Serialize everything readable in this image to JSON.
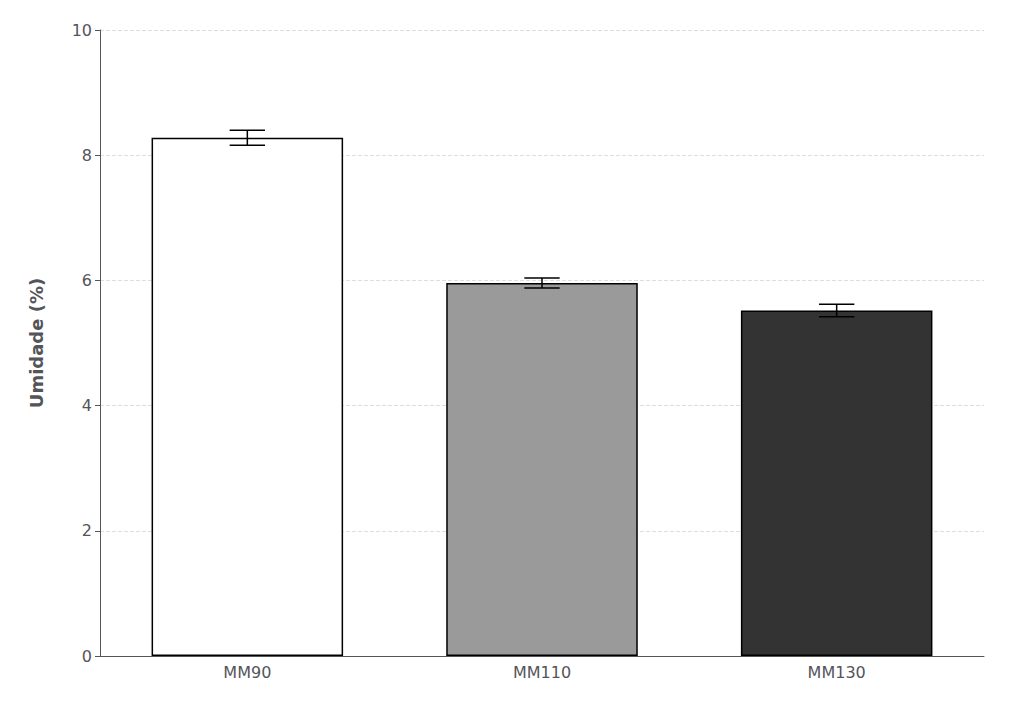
{
  "chart_data": {
    "type": "bar",
    "categories": [
      "MM90",
      "MM110",
      "MM130"
    ],
    "values": [
      8.28,
      5.96,
      5.52
    ],
    "errors": [
      0.12,
      0.08,
      0.1
    ],
    "colors": [
      "#ffffff",
      "#9a9a9a",
      "#333333"
    ],
    "ylabel": "Umidade (%)",
    "ylim": [
      0,
      10
    ],
    "yticks": [
      0,
      2,
      4,
      6,
      8,
      10
    ],
    "grid": true
  }
}
